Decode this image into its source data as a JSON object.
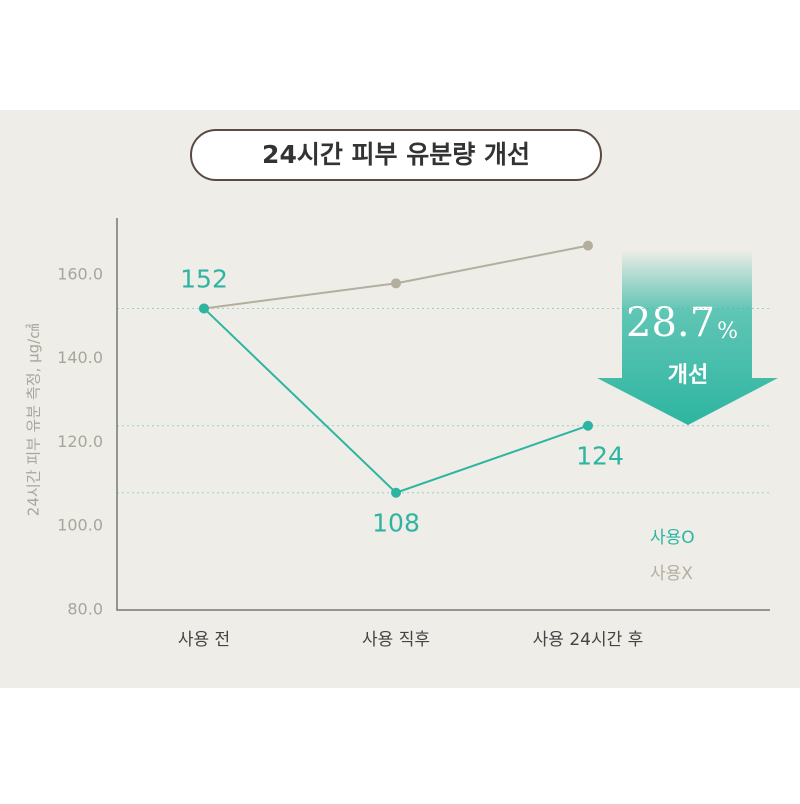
{
  "chart_data": {
    "type": "line",
    "title": "24시간 피부 유분량 개선",
    "y_label": "24시간 피부 유분 측정, μg/㎠",
    "categories": [
      "사용 전",
      "사용 직후",
      "사용 24시간 후"
    ],
    "series": [
      {
        "name": "사용O",
        "color": "#2db5a1",
        "values": [
          152,
          108,
          124
        ],
        "data_labels": true,
        "reference_lines": true
      },
      {
        "name": "사용X",
        "color": "#b4ae9f",
        "values": [
          152,
          158,
          167
        ]
      }
    ],
    "ylim": [
      80,
      173.6
    ],
    "yticks": [
      {
        "value": 80,
        "label": "80.0"
      },
      {
        "value": 100,
        "label": "100.0"
      },
      {
        "value": 120,
        "label": "120.0"
      },
      {
        "value": 140,
        "label": "140.0"
      },
      {
        "value": 160,
        "label": "160.0"
      }
    ],
    "annotation": {
      "value": "28.7",
      "unit": "%",
      "text": "개선"
    }
  }
}
